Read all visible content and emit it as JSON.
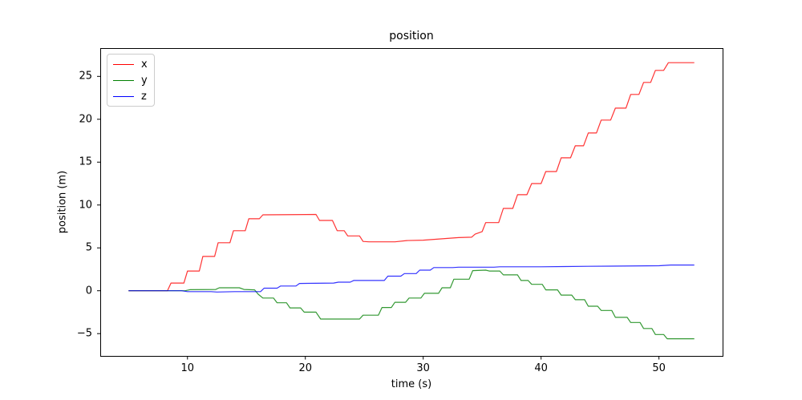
{
  "chart_data": {
    "type": "line",
    "title": "position",
    "xlabel": "time (s)",
    "ylabel": "position (m)",
    "xlim": [
      2.6,
      55.4
    ],
    "ylim": [
      -7.6,
      28.3
    ],
    "x_ticks": [
      10,
      20,
      30,
      40,
      50
    ],
    "y_ticks": [
      -5,
      0,
      5,
      10,
      15,
      20,
      25
    ],
    "grid": false,
    "legend": {
      "position": "upper left"
    },
    "axis_color": "#000000",
    "series": [
      {
        "name": "x",
        "color": "#ff0000",
        "points": [
          [
            5,
            0
          ],
          [
            8.3,
            0
          ],
          [
            8.6,
            0.9
          ],
          [
            9.7,
            0.9
          ],
          [
            10.0,
            2.3
          ],
          [
            11.0,
            2.3
          ],
          [
            11.3,
            4.0
          ],
          [
            12.3,
            4.0
          ],
          [
            12.6,
            5.6
          ],
          [
            13.6,
            5.6
          ],
          [
            13.9,
            7.0
          ],
          [
            14.9,
            7.0
          ],
          [
            15.2,
            8.4
          ],
          [
            16.1,
            8.4
          ],
          [
            16.4,
            8.85
          ],
          [
            20.9,
            8.9
          ],
          [
            21.2,
            8.2
          ],
          [
            22.3,
            8.2
          ],
          [
            22.7,
            7.0
          ],
          [
            23.3,
            7.0
          ],
          [
            23.6,
            6.4
          ],
          [
            24.6,
            6.4
          ],
          [
            24.9,
            5.75
          ],
          [
            25.4,
            5.7
          ],
          [
            27.6,
            5.7
          ],
          [
            28.6,
            5.85
          ],
          [
            30.0,
            5.9
          ],
          [
            31.5,
            6.05
          ],
          [
            33.0,
            6.2
          ],
          [
            34.1,
            6.25
          ],
          [
            34.4,
            6.6
          ],
          [
            35.0,
            6.9
          ],
          [
            35.3,
            7.95
          ],
          [
            36.4,
            7.95
          ],
          [
            36.8,
            9.6
          ],
          [
            37.6,
            9.6
          ],
          [
            38.0,
            11.2
          ],
          [
            38.8,
            11.2
          ],
          [
            39.2,
            12.5
          ],
          [
            40.0,
            12.5
          ],
          [
            40.4,
            13.9
          ],
          [
            41.3,
            13.9
          ],
          [
            41.7,
            15.5
          ],
          [
            42.5,
            15.5
          ],
          [
            42.9,
            16.9
          ],
          [
            43.6,
            16.9
          ],
          [
            44.0,
            18.4
          ],
          [
            44.7,
            18.4
          ],
          [
            45.1,
            19.9
          ],
          [
            45.9,
            19.9
          ],
          [
            46.3,
            21.3
          ],
          [
            47.2,
            21.3
          ],
          [
            47.6,
            22.9
          ],
          [
            48.3,
            22.9
          ],
          [
            48.7,
            24.3
          ],
          [
            49.3,
            24.3
          ],
          [
            49.7,
            25.7
          ],
          [
            50.4,
            25.7
          ],
          [
            50.8,
            26.6
          ],
          [
            53,
            26.6
          ]
        ]
      },
      {
        "name": "y",
        "color": "#008000",
        "points": [
          [
            5,
            0
          ],
          [
            9.8,
            0
          ],
          [
            10.2,
            0.12
          ],
          [
            12.4,
            0.15
          ],
          [
            12.7,
            0.35
          ],
          [
            14.4,
            0.35
          ],
          [
            14.8,
            0.15
          ],
          [
            15.7,
            0.1
          ],
          [
            16.0,
            -0.4
          ],
          [
            16.4,
            -0.85
          ],
          [
            17.3,
            -0.85
          ],
          [
            17.6,
            -1.4
          ],
          [
            18.4,
            -1.4
          ],
          [
            18.7,
            -2.0
          ],
          [
            19.6,
            -2.0
          ],
          [
            19.9,
            -2.5
          ],
          [
            20.9,
            -2.5
          ],
          [
            21.3,
            -3.3
          ],
          [
            24.6,
            -3.3
          ],
          [
            24.9,
            -2.85
          ],
          [
            26.2,
            -2.85
          ],
          [
            26.5,
            -1.95
          ],
          [
            27.3,
            -1.95
          ],
          [
            27.6,
            -1.35
          ],
          [
            28.5,
            -1.35
          ],
          [
            28.8,
            -0.85
          ],
          [
            29.8,
            -0.85
          ],
          [
            30.1,
            -0.3
          ],
          [
            31.3,
            -0.3
          ],
          [
            31.6,
            0.35
          ],
          [
            32.3,
            0.35
          ],
          [
            32.6,
            1.35
          ],
          [
            33.9,
            1.35
          ],
          [
            34.2,
            2.35
          ],
          [
            35.3,
            2.4
          ],
          [
            35.6,
            2.3
          ],
          [
            36.5,
            2.3
          ],
          [
            36.8,
            1.85
          ],
          [
            38.0,
            1.85
          ],
          [
            38.3,
            1.2
          ],
          [
            38.9,
            1.2
          ],
          [
            39.2,
            0.75
          ],
          [
            40.1,
            0.75
          ],
          [
            40.4,
            0.1
          ],
          [
            41.4,
            0.1
          ],
          [
            41.7,
            -0.5
          ],
          [
            42.6,
            -0.5
          ],
          [
            42.9,
            -1.05
          ],
          [
            43.7,
            -1.05
          ],
          [
            44.0,
            -1.8
          ],
          [
            44.8,
            -1.8
          ],
          [
            45.1,
            -2.3
          ],
          [
            46.0,
            -2.3
          ],
          [
            46.3,
            -3.1
          ],
          [
            47.3,
            -3.1
          ],
          [
            47.6,
            -3.7
          ],
          [
            48.4,
            -3.7
          ],
          [
            48.7,
            -4.4
          ],
          [
            49.4,
            -4.4
          ],
          [
            49.7,
            -5.1
          ],
          [
            50.4,
            -5.1
          ],
          [
            50.7,
            -5.6
          ],
          [
            53,
            -5.6
          ]
        ]
      },
      {
        "name": "z",
        "color": "#0000ff",
        "points": [
          [
            5,
            0
          ],
          [
            9.5,
            0
          ],
          [
            10.0,
            -0.1
          ],
          [
            12.0,
            -0.1
          ],
          [
            12.5,
            -0.15
          ],
          [
            14.0,
            -0.1
          ],
          [
            16.2,
            -0.1
          ],
          [
            16.5,
            0.3
          ],
          [
            17.6,
            0.3
          ],
          [
            17.9,
            0.55
          ],
          [
            19.2,
            0.55
          ],
          [
            19.5,
            0.85
          ],
          [
            22.4,
            0.9
          ],
          [
            22.8,
            1.0
          ],
          [
            23.8,
            1.0
          ],
          [
            24.1,
            1.2
          ],
          [
            26.7,
            1.2
          ],
          [
            27.0,
            1.7
          ],
          [
            28.1,
            1.7
          ],
          [
            28.4,
            2.0
          ],
          [
            29.4,
            2.0
          ],
          [
            29.7,
            2.4
          ],
          [
            30.6,
            2.4
          ],
          [
            30.9,
            2.7
          ],
          [
            32.5,
            2.7
          ],
          [
            33.0,
            2.75
          ],
          [
            36.0,
            2.75
          ],
          [
            36.5,
            2.8
          ],
          [
            40.0,
            2.8
          ],
          [
            42.0,
            2.82
          ],
          [
            44.0,
            2.85
          ],
          [
            47.0,
            2.88
          ],
          [
            50.0,
            2.92
          ],
          [
            51.0,
            3.0
          ],
          [
            53,
            3.0
          ]
        ]
      }
    ]
  }
}
